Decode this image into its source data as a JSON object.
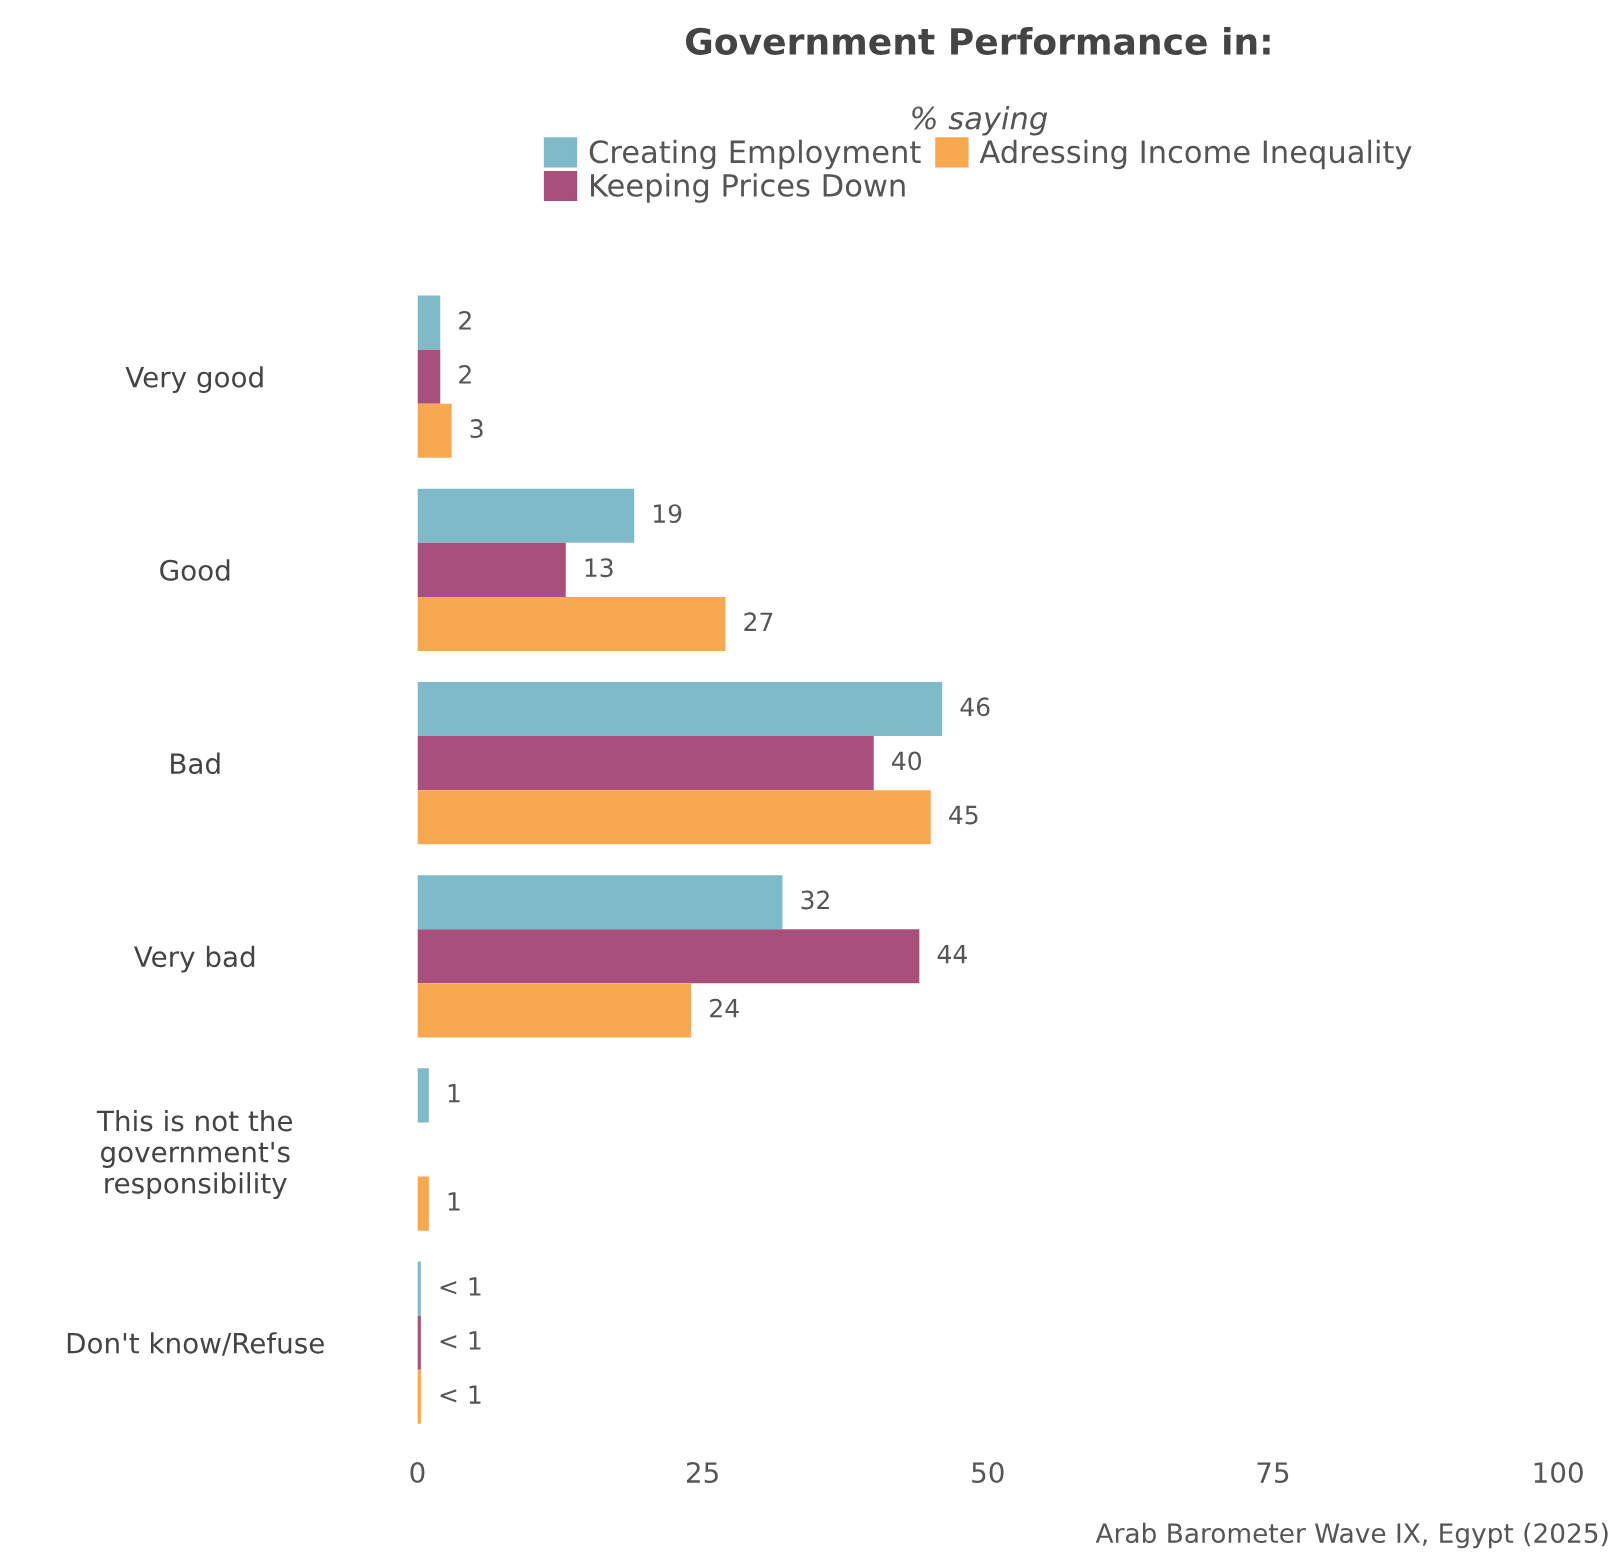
{
  "chart_data": {
    "type": "bar",
    "orientation": "horizontal",
    "title": "Government Performance in:",
    "subtitle": "% saying",
    "categories": [
      "Very good",
      "Good",
      "Bad",
      "Very bad",
      "This is not the\ngovernment's\nresponsibility",
      "Don't know/Refuse"
    ],
    "series": [
      {
        "name": "Creating Employment",
        "color": "#7fbac8",
        "values": [
          2,
          19,
          46,
          32,
          1,
          0.3
        ],
        "value_labels": [
          "2",
          "19",
          "46",
          "32",
          "1",
          "< 1"
        ]
      },
      {
        "name": "Keeping Prices Down",
        "color": "#a84f7c",
        "values": [
          2,
          13,
          40,
          44,
          null,
          0.3
        ],
        "value_labels": [
          "2",
          "13",
          "40",
          "44",
          null,
          "< 1"
        ]
      },
      {
        "name": "Adressing Income Inequality",
        "color": "#f9a852",
        "values": [
          3,
          27,
          45,
          24,
          1,
          0.3
        ],
        "value_labels": [
          "3",
          "27",
          "45",
          "24",
          "1",
          "< 1"
        ]
      }
    ],
    "xlim": [
      0,
      100
    ],
    "xticks": [
      0,
      25,
      50,
      75,
      100
    ],
    "grid": false,
    "legend": "top",
    "annotations": [
      "Arab Barometer Wave IX, Egypt (2025)"
    ]
  }
}
